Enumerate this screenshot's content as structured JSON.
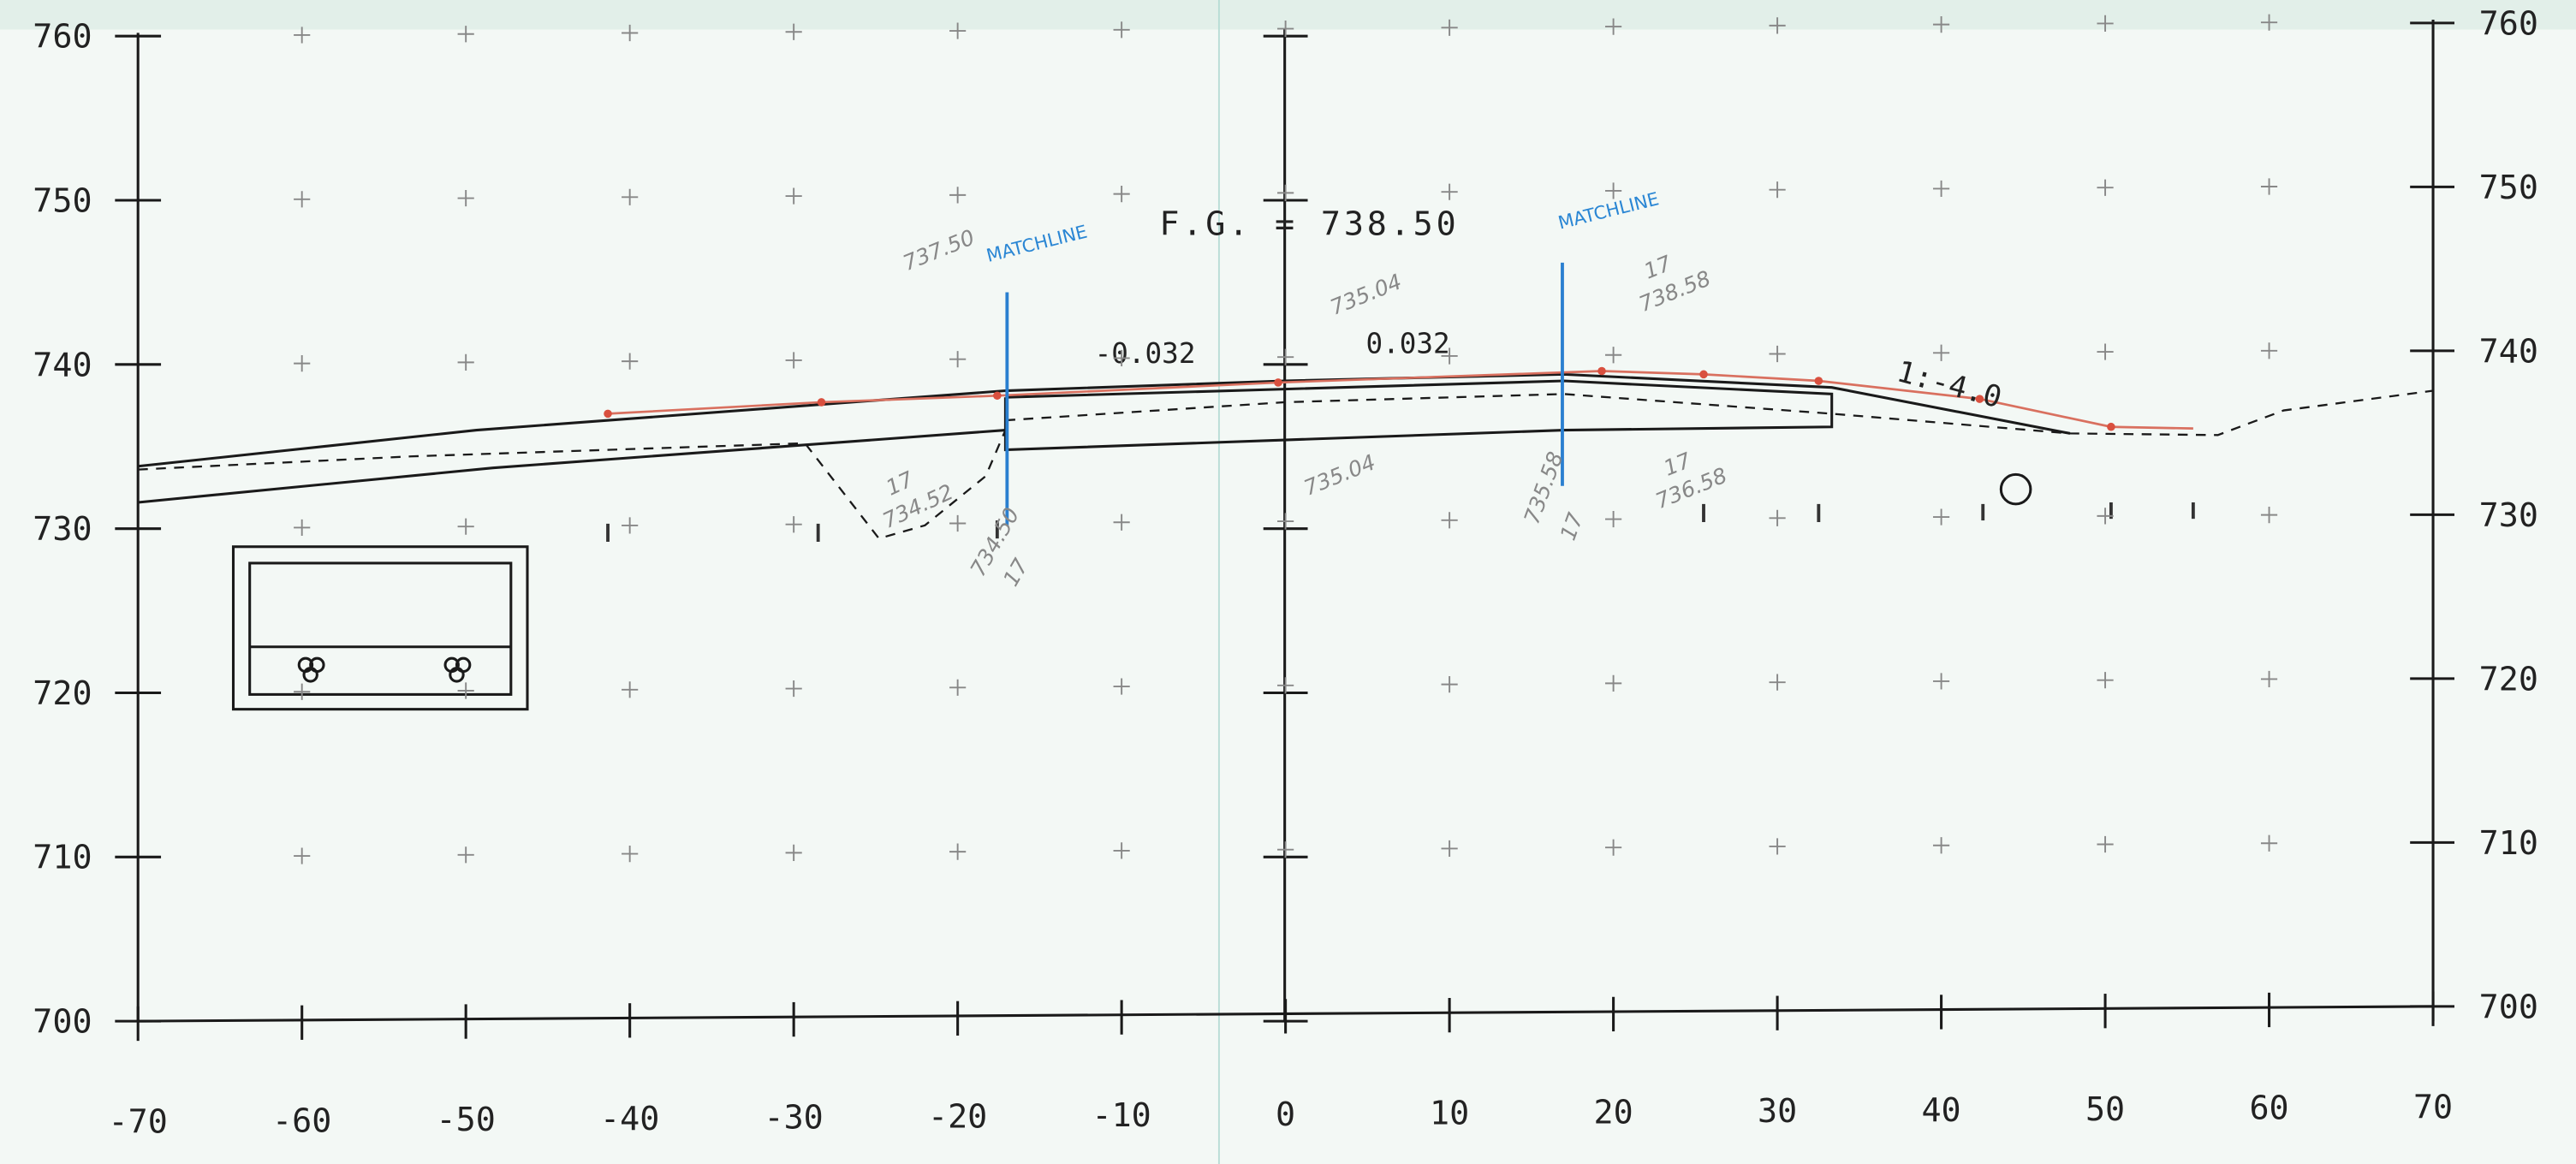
{
  "drawing": {
    "finished_grade": "F.G. = 738.50",
    "matchlines": [
      "MATCHLINE",
      "MATCHLINE"
    ],
    "slopes": [
      "-0.032",
      "0.032",
      "1:-4.0"
    ],
    "handwritten": [
      "737.50",
      "735.04",
      "17",
      "738.58",
      "17",
      "734.52",
      "734.50",
      "17",
      "735.04",
      "735.58",
      "17",
      "17",
      "736.58"
    ]
  },
  "axes": {
    "xticks": [
      -70,
      -60,
      -50,
      -40,
      -30,
      -20,
      -10,
      0,
      10,
      20,
      30,
      40,
      50,
      60,
      70
    ],
    "yticks_left": [
      700,
      710,
      720,
      730,
      740,
      750,
      760
    ],
    "yticks_right": [
      700,
      710,
      720,
      730,
      740,
      750,
      760
    ]
  }
}
